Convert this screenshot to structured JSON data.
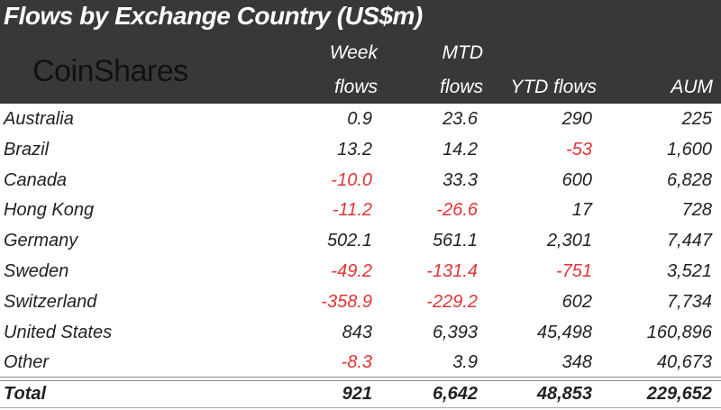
{
  "title": "Flows by Exchange Country (US$m)",
  "logo": "CoinShares",
  "columns": {
    "week_1": "Week",
    "week_2": "flows",
    "mtd_1": "MTD",
    "mtd_2": "flows",
    "ytd": "YTD flows",
    "aum": "AUM"
  },
  "colors": {
    "header_bg": "#383838",
    "negative": "#e03535",
    "text": "#222222"
  },
  "chart_data": {
    "type": "table",
    "title": "Flows by Exchange Country (US$m)",
    "headers": [
      "",
      "Week flows",
      "MTD flows",
      "YTD flows",
      "AUM"
    ],
    "rows": [
      {
        "label": "Australia",
        "values": [
          "0.9",
          "23.6",
          "290",
          "225"
        ]
      },
      {
        "label": "Brazil",
        "values": [
          "13.2",
          "14.2",
          "-53",
          "1,600"
        ]
      },
      {
        "label": "Canada",
        "values": [
          "-10.0",
          "33.3",
          "600",
          "6,828"
        ]
      },
      {
        "label": "Hong Kong",
        "values": [
          "-11.2",
          "-26.6",
          "17",
          "728"
        ]
      },
      {
        "label": "Germany",
        "values": [
          "502.1",
          "561.1",
          "2,301",
          "7,447"
        ]
      },
      {
        "label": "Sweden",
        "values": [
          "-49.2",
          "-131.4",
          "-751",
          "3,521"
        ]
      },
      {
        "label": "Switzerland",
        "values": [
          "-358.9",
          "-229.2",
          "602",
          "7,734"
        ]
      },
      {
        "label": "United States",
        "values": [
          "843",
          "6,393",
          "45,498",
          "160,896"
        ]
      },
      {
        "label": "Other",
        "values": [
          "-8.3",
          "3.9",
          "348",
          "40,673"
        ]
      }
    ],
    "total": {
      "label": "Total",
      "values": [
        "921",
        "6,642",
        "48,853",
        "229,652"
      ]
    }
  }
}
